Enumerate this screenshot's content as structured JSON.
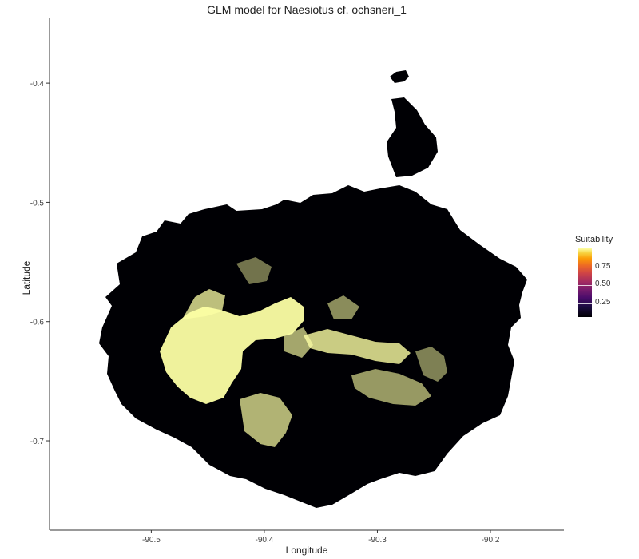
{
  "map": {
    "title": "GLM model for Naesiotus cf. ochsneri_1",
    "xlabel": "Longitude",
    "ylabel": "Latitude",
    "x_ticks": [
      -90.5,
      -90.4,
      -90.3,
      -90.2
    ],
    "y_ticks": [
      -0.4,
      -0.5,
      -0.6,
      -0.7
    ],
    "xlim": [
      -90.59,
      -90.135
    ],
    "ylim": [
      -0.775,
      -0.345
    ],
    "colors": {
      "land": "#000004",
      "high": "#fcffa4",
      "ocean": "#ffffff"
    },
    "colormap": "inferno"
  },
  "legend": {
    "title": "Suitability",
    "ticks": [
      "0.75",
      "0.50",
      "0.25"
    ]
  },
  "chart_data": {
    "type": "heatmap",
    "title": "GLM model for Naesiotus cf. ochsneri_1",
    "xlabel": "Longitude",
    "ylabel": "Latitude",
    "xlim": [
      -90.59,
      -90.135
    ],
    "ylim": [
      -0.775,
      -0.345
    ],
    "x_ticks": [
      -90.5,
      -90.4,
      -90.3,
      -90.2
    ],
    "y_ticks": [
      -0.4,
      -0.5,
      -0.6,
      -0.7
    ],
    "value_range": [
      0,
      1
    ],
    "legend_title": "Suitability",
    "legend_ticks": [
      0.75,
      0.5,
      0.25
    ],
    "grid": false,
    "legend_position": "right"
  }
}
